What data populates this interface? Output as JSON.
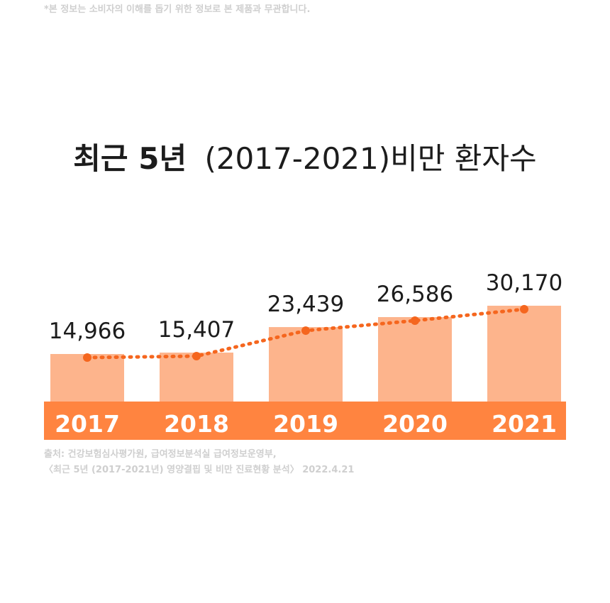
{
  "disclaimer": "*본 정보는 소비자의 이해를 돕기 위한 정보로 본 제품과 무관합니다.",
  "colors": {
    "bar": "#fdb48c",
    "band": "#ff8440",
    "line": "#f5661e",
    "label": "#1c1c1c",
    "muted": "#cfcfcf"
  },
  "chart_data": {
    "type": "bar",
    "title": "최근 5년",
    "subtitle": "(2017-2021)비만 환자수",
    "categories": [
      "2017",
      "2018",
      "2019",
      "2020",
      "2021"
    ],
    "values": [
      14966,
      15407,
      23439,
      26586,
      30170
    ],
    "value_labels": [
      "14,966",
      "15,407",
      "23,439",
      "26,586",
      "30,170"
    ],
    "trend_line": true,
    "grid": false,
    "legend": "none"
  },
  "source": {
    "line1": "출처: 건강보험심사평가원, 급여정보분석실 급여정보운영부,",
    "line2": "〈최근 5년 (2017-2021년) 영양결핍 및 비만 진료현황 분석〉 2022.4.21"
  }
}
